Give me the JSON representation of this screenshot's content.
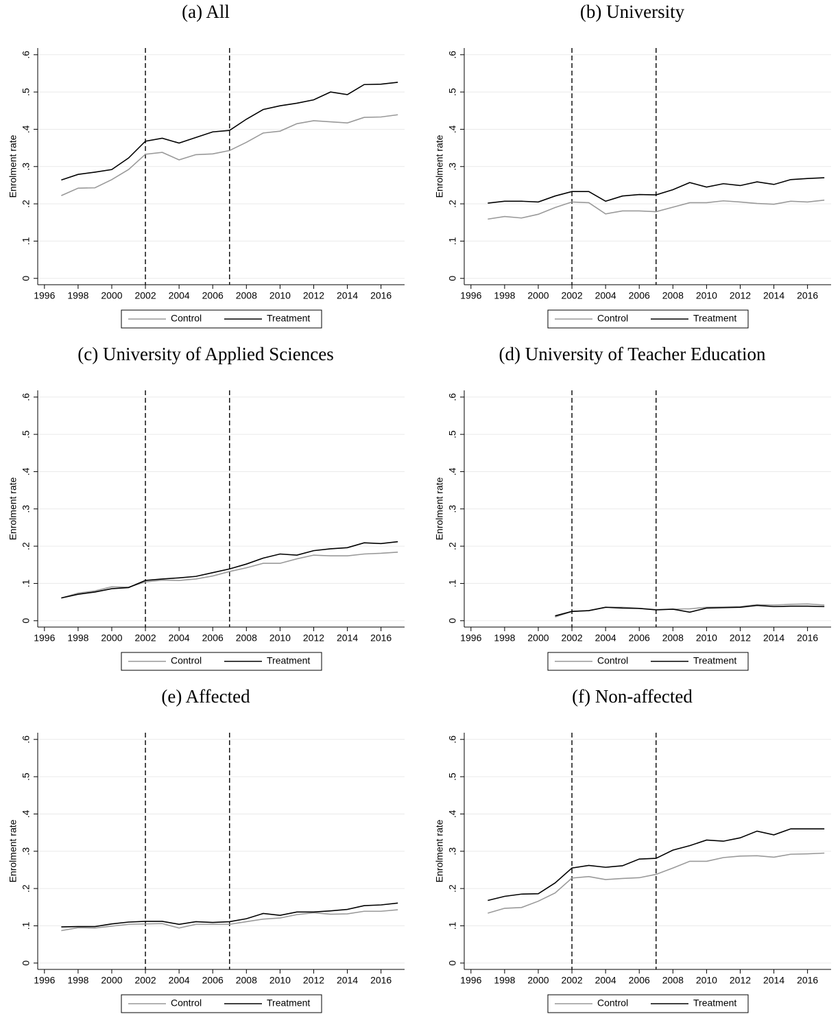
{
  "chart_data": [
    {
      "type": "line",
      "title": "(a) All",
      "ylabel": "Enrolment rate",
      "x": [
        1997,
        1998,
        1999,
        2000,
        2001,
        2002,
        2003,
        2004,
        2005,
        2006,
        2007,
        2008,
        2009,
        2010,
        2011,
        2012,
        2013,
        2014,
        2015,
        2016,
        2017
      ],
      "series": [
        {
          "name": "Control",
          "color": "#999999",
          "values": [
            0.222,
            0.242,
            0.243,
            0.265,
            0.292,
            0.333,
            0.338,
            0.318,
            0.332,
            0.334,
            0.343,
            0.365,
            0.39,
            0.395,
            0.415,
            0.423,
            0.42,
            0.417,
            0.432,
            0.433,
            0.439
          ]
        },
        {
          "name": "Treatment",
          "color": "#000000",
          "values": [
            0.264,
            0.279,
            0.285,
            0.292,
            0.323,
            0.368,
            0.376,
            0.363,
            0.378,
            0.393,
            0.397,
            0.427,
            0.453,
            0.463,
            0.47,
            0.479,
            0.5,
            0.493,
            0.52,
            0.521,
            0.526
          ]
        }
      ],
      "vlines": [
        2002,
        2007
      ],
      "xlim": [
        1995.6,
        2017.4
      ],
      "xticks": [
        1996,
        1998,
        2000,
        2002,
        2004,
        2006,
        2008,
        2010,
        2012,
        2014,
        2016
      ],
      "ylim": [
        -0.017,
        0.618
      ],
      "yticks": [
        0,
        {
          "value": 0.1,
          "label": ".1"
        },
        {
          "value": 0.2,
          "label": ".2"
        },
        {
          "value": 0.3,
          "label": ".3"
        },
        {
          "value": 0.4,
          "label": ".4"
        },
        {
          "value": 0.5,
          "label": ".5"
        },
        {
          "value": 0.6,
          "label": ".6"
        }
      ],
      "grid": true,
      "legend": "bottom"
    },
    {
      "type": "line",
      "title": "(b) University",
      "ylabel": "Enrolment rate",
      "x": [
        1997,
        1998,
        1999,
        2000,
        2001,
        2002,
        2003,
        2004,
        2005,
        2006,
        2007,
        2008,
        2009,
        2010,
        2011,
        2012,
        2013,
        2014,
        2015,
        2016,
        2017
      ],
      "series": [
        {
          "name": "Control",
          "color": "#999999",
          "values": [
            0.159,
            0.166,
            0.162,
            0.172,
            0.19,
            0.205,
            0.203,
            0.173,
            0.181,
            0.181,
            0.179,
            0.191,
            0.203,
            0.203,
            0.208,
            0.205,
            0.201,
            0.199,
            0.207,
            0.205,
            0.21
          ]
        },
        {
          "name": "Treatment",
          "color": "#000000",
          "values": [
            0.202,
            0.207,
            0.207,
            0.205,
            0.221,
            0.233,
            0.233,
            0.207,
            0.221,
            0.225,
            0.224,
            0.238,
            0.257,
            0.245,
            0.254,
            0.249,
            0.259,
            0.252,
            0.265,
            0.268,
            0.27
          ]
        }
      ],
      "vlines": [
        2002,
        2007
      ],
      "xlim": [
        1995.6,
        2017.4
      ],
      "xticks": [
        1996,
        1998,
        2000,
        2002,
        2004,
        2006,
        2008,
        2010,
        2012,
        2014,
        2016
      ],
      "ylim": [
        -0.017,
        0.618
      ],
      "yticks": [
        0,
        {
          "value": 0.1,
          "label": ".1"
        },
        {
          "value": 0.2,
          "label": ".2"
        },
        {
          "value": 0.3,
          "label": ".3"
        },
        {
          "value": 0.4,
          "label": ".4"
        },
        {
          "value": 0.5,
          "label": ".5"
        },
        {
          "value": 0.6,
          "label": ".6"
        }
      ],
      "grid": true,
      "legend": "bottom"
    },
    {
      "type": "line",
      "title": "(c) University of Applied Sciences",
      "ylabel": "Enrolment rate",
      "x": [
        1997,
        1998,
        1999,
        2000,
        2001,
        2002,
        2003,
        2004,
        2005,
        2006,
        2007,
        2008,
        2009,
        2010,
        2011,
        2012,
        2013,
        2014,
        2015,
        2016,
        2017
      ],
      "series": [
        {
          "name": "Control",
          "color": "#999999",
          "values": [
            0.061,
            0.074,
            0.08,
            0.091,
            0.09,
            0.104,
            0.109,
            0.108,
            0.112,
            0.12,
            0.132,
            0.142,
            0.154,
            0.154,
            0.166,
            0.176,
            0.174,
            0.174,
            0.179,
            0.181,
            0.184
          ]
        },
        {
          "name": "Treatment",
          "color": "#000000",
          "values": [
            0.061,
            0.071,
            0.077,
            0.086,
            0.089,
            0.108,
            0.112,
            0.115,
            0.119,
            0.129,
            0.139,
            0.152,
            0.168,
            0.179,
            0.176,
            0.188,
            0.193,
            0.196,
            0.209,
            0.207,
            0.212
          ]
        }
      ],
      "vlines": [
        2002,
        2007
      ],
      "xlim": [
        1995.6,
        2017.4
      ],
      "xticks": [
        1996,
        1998,
        2000,
        2002,
        2004,
        2006,
        2008,
        2010,
        2012,
        2014,
        2016
      ],
      "ylim": [
        -0.017,
        0.618
      ],
      "yticks": [
        0,
        {
          "value": 0.1,
          "label": ".1"
        },
        {
          "value": 0.2,
          "label": ".2"
        },
        {
          "value": 0.3,
          "label": ".3"
        },
        {
          "value": 0.4,
          "label": ".4"
        },
        {
          "value": 0.5,
          "label": ".5"
        },
        {
          "value": 0.6,
          "label": ".6"
        }
      ],
      "grid": true,
      "legend": "bottom"
    },
    {
      "type": "line",
      "title": "(d) University of Teacher Education",
      "ylabel": "Enrolment rate",
      "x": [
        1997,
        1998,
        1999,
        2000,
        2001,
        2002,
        2003,
        2004,
        2005,
        2006,
        2007,
        2008,
        2009,
        2010,
        2011,
        2012,
        2013,
        2014,
        2015,
        2016,
        2017
      ],
      "series": [
        {
          "name": "Control",
          "color": "#999999",
          "values": [
            null,
            null,
            null,
            null,
            0.01,
            0.025,
            0.027,
            0.036,
            0.036,
            0.033,
            0.03,
            0.031,
            0.032,
            0.036,
            0.037,
            0.038,
            0.043,
            0.042,
            0.044,
            0.045,
            0.042
          ]
        },
        {
          "name": "Treatment",
          "color": "#000000",
          "values": [
            null,
            null,
            null,
            null,
            0.013,
            0.025,
            0.027,
            0.036,
            0.034,
            0.033,
            0.029,
            0.031,
            0.023,
            0.034,
            0.035,
            0.036,
            0.041,
            0.038,
            0.039,
            0.039,
            0.038
          ]
        }
      ],
      "vlines": [
        2002,
        2007
      ],
      "xlim": [
        1995.6,
        2017.4
      ],
      "xticks": [
        1996,
        1998,
        2000,
        2002,
        2004,
        2006,
        2008,
        2010,
        2012,
        2014,
        2016
      ],
      "ylim": [
        -0.017,
        0.618
      ],
      "yticks": [
        0,
        {
          "value": 0.1,
          "label": ".1"
        },
        {
          "value": 0.2,
          "label": ".2"
        },
        {
          "value": 0.3,
          "label": ".3"
        },
        {
          "value": 0.4,
          "label": ".4"
        },
        {
          "value": 0.5,
          "label": ".5"
        },
        {
          "value": 0.6,
          "label": ".6"
        }
      ],
      "grid": true,
      "legend": "bottom"
    },
    {
      "type": "line",
      "title": "(e) Affected",
      "ylabel": "Enrolment rate",
      "x": [
        1997,
        1998,
        1999,
        2000,
        2001,
        2002,
        2003,
        2004,
        2005,
        2006,
        2007,
        2008,
        2009,
        2010,
        2011,
        2012,
        2013,
        2014,
        2015,
        2016,
        2017
      ],
      "series": [
        {
          "name": "Control",
          "color": "#999999",
          "values": [
            0.087,
            0.095,
            0.094,
            0.099,
            0.104,
            0.105,
            0.106,
            0.094,
            0.104,
            0.104,
            0.104,
            0.111,
            0.118,
            0.121,
            0.13,
            0.135,
            0.131,
            0.132,
            0.139,
            0.139,
            0.143
          ]
        },
        {
          "name": "Treatment",
          "color": "#000000",
          "values": [
            0.097,
            0.098,
            0.098,
            0.105,
            0.11,
            0.112,
            0.112,
            0.104,
            0.111,
            0.109,
            0.111,
            0.119,
            0.133,
            0.128,
            0.137,
            0.137,
            0.14,
            0.144,
            0.154,
            0.156,
            0.161
          ]
        }
      ],
      "vlines": [
        2002,
        2007
      ],
      "xlim": [
        1995.6,
        2017.4
      ],
      "xticks": [
        1996,
        1998,
        2000,
        2002,
        2004,
        2006,
        2008,
        2010,
        2012,
        2014,
        2016
      ],
      "ylim": [
        -0.017,
        0.618
      ],
      "yticks": [
        0,
        {
          "value": 0.1,
          "label": ".1"
        },
        {
          "value": 0.2,
          "label": ".2"
        },
        {
          "value": 0.3,
          "label": ".3"
        },
        {
          "value": 0.4,
          "label": ".4"
        },
        {
          "value": 0.5,
          "label": ".5"
        },
        {
          "value": 0.6,
          "label": ".6"
        }
      ],
      "grid": true,
      "legend": "bottom"
    },
    {
      "type": "line",
      "title": "(f) Non-affected",
      "ylabel": "Enrolment rate",
      "x": [
        1997,
        1998,
        1999,
        2000,
        2001,
        2002,
        2003,
        2004,
        2005,
        2006,
        2007,
        2008,
        2009,
        2010,
        2011,
        2012,
        2013,
        2014,
        2015,
        2016,
        2017
      ],
      "series": [
        {
          "name": "Control",
          "color": "#999999",
          "values": [
            0.134,
            0.147,
            0.149,
            0.166,
            0.188,
            0.228,
            0.232,
            0.224,
            0.227,
            0.229,
            0.238,
            0.255,
            0.273,
            0.273,
            0.283,
            0.287,
            0.288,
            0.284,
            0.292,
            0.293,
            0.295
          ]
        },
        {
          "name": "Treatment",
          "color": "#000000",
          "values": [
            0.168,
            0.179,
            0.185,
            0.186,
            0.215,
            0.255,
            0.262,
            0.257,
            0.261,
            0.279,
            0.281,
            0.303,
            0.315,
            0.33,
            0.327,
            0.336,
            0.354,
            0.344,
            0.36,
            0.36,
            0.36
          ]
        }
      ],
      "vlines": [
        2002,
        2007
      ],
      "xlim": [
        1995.6,
        2017.4
      ],
      "xticks": [
        1996,
        1998,
        2000,
        2002,
        2004,
        2006,
        2008,
        2010,
        2012,
        2014,
        2016
      ],
      "ylim": [
        -0.017,
        0.618
      ],
      "yticks": [
        0,
        {
          "value": 0.1,
          "label": ".1"
        },
        {
          "value": 0.2,
          "label": ".2"
        },
        {
          "value": 0.3,
          "label": ".3"
        },
        {
          "value": 0.4,
          "label": ".4"
        },
        {
          "value": 0.5,
          "label": ".5"
        },
        {
          "value": 0.6,
          "label": ".6"
        }
      ],
      "grid": true,
      "legend": "bottom"
    }
  ]
}
